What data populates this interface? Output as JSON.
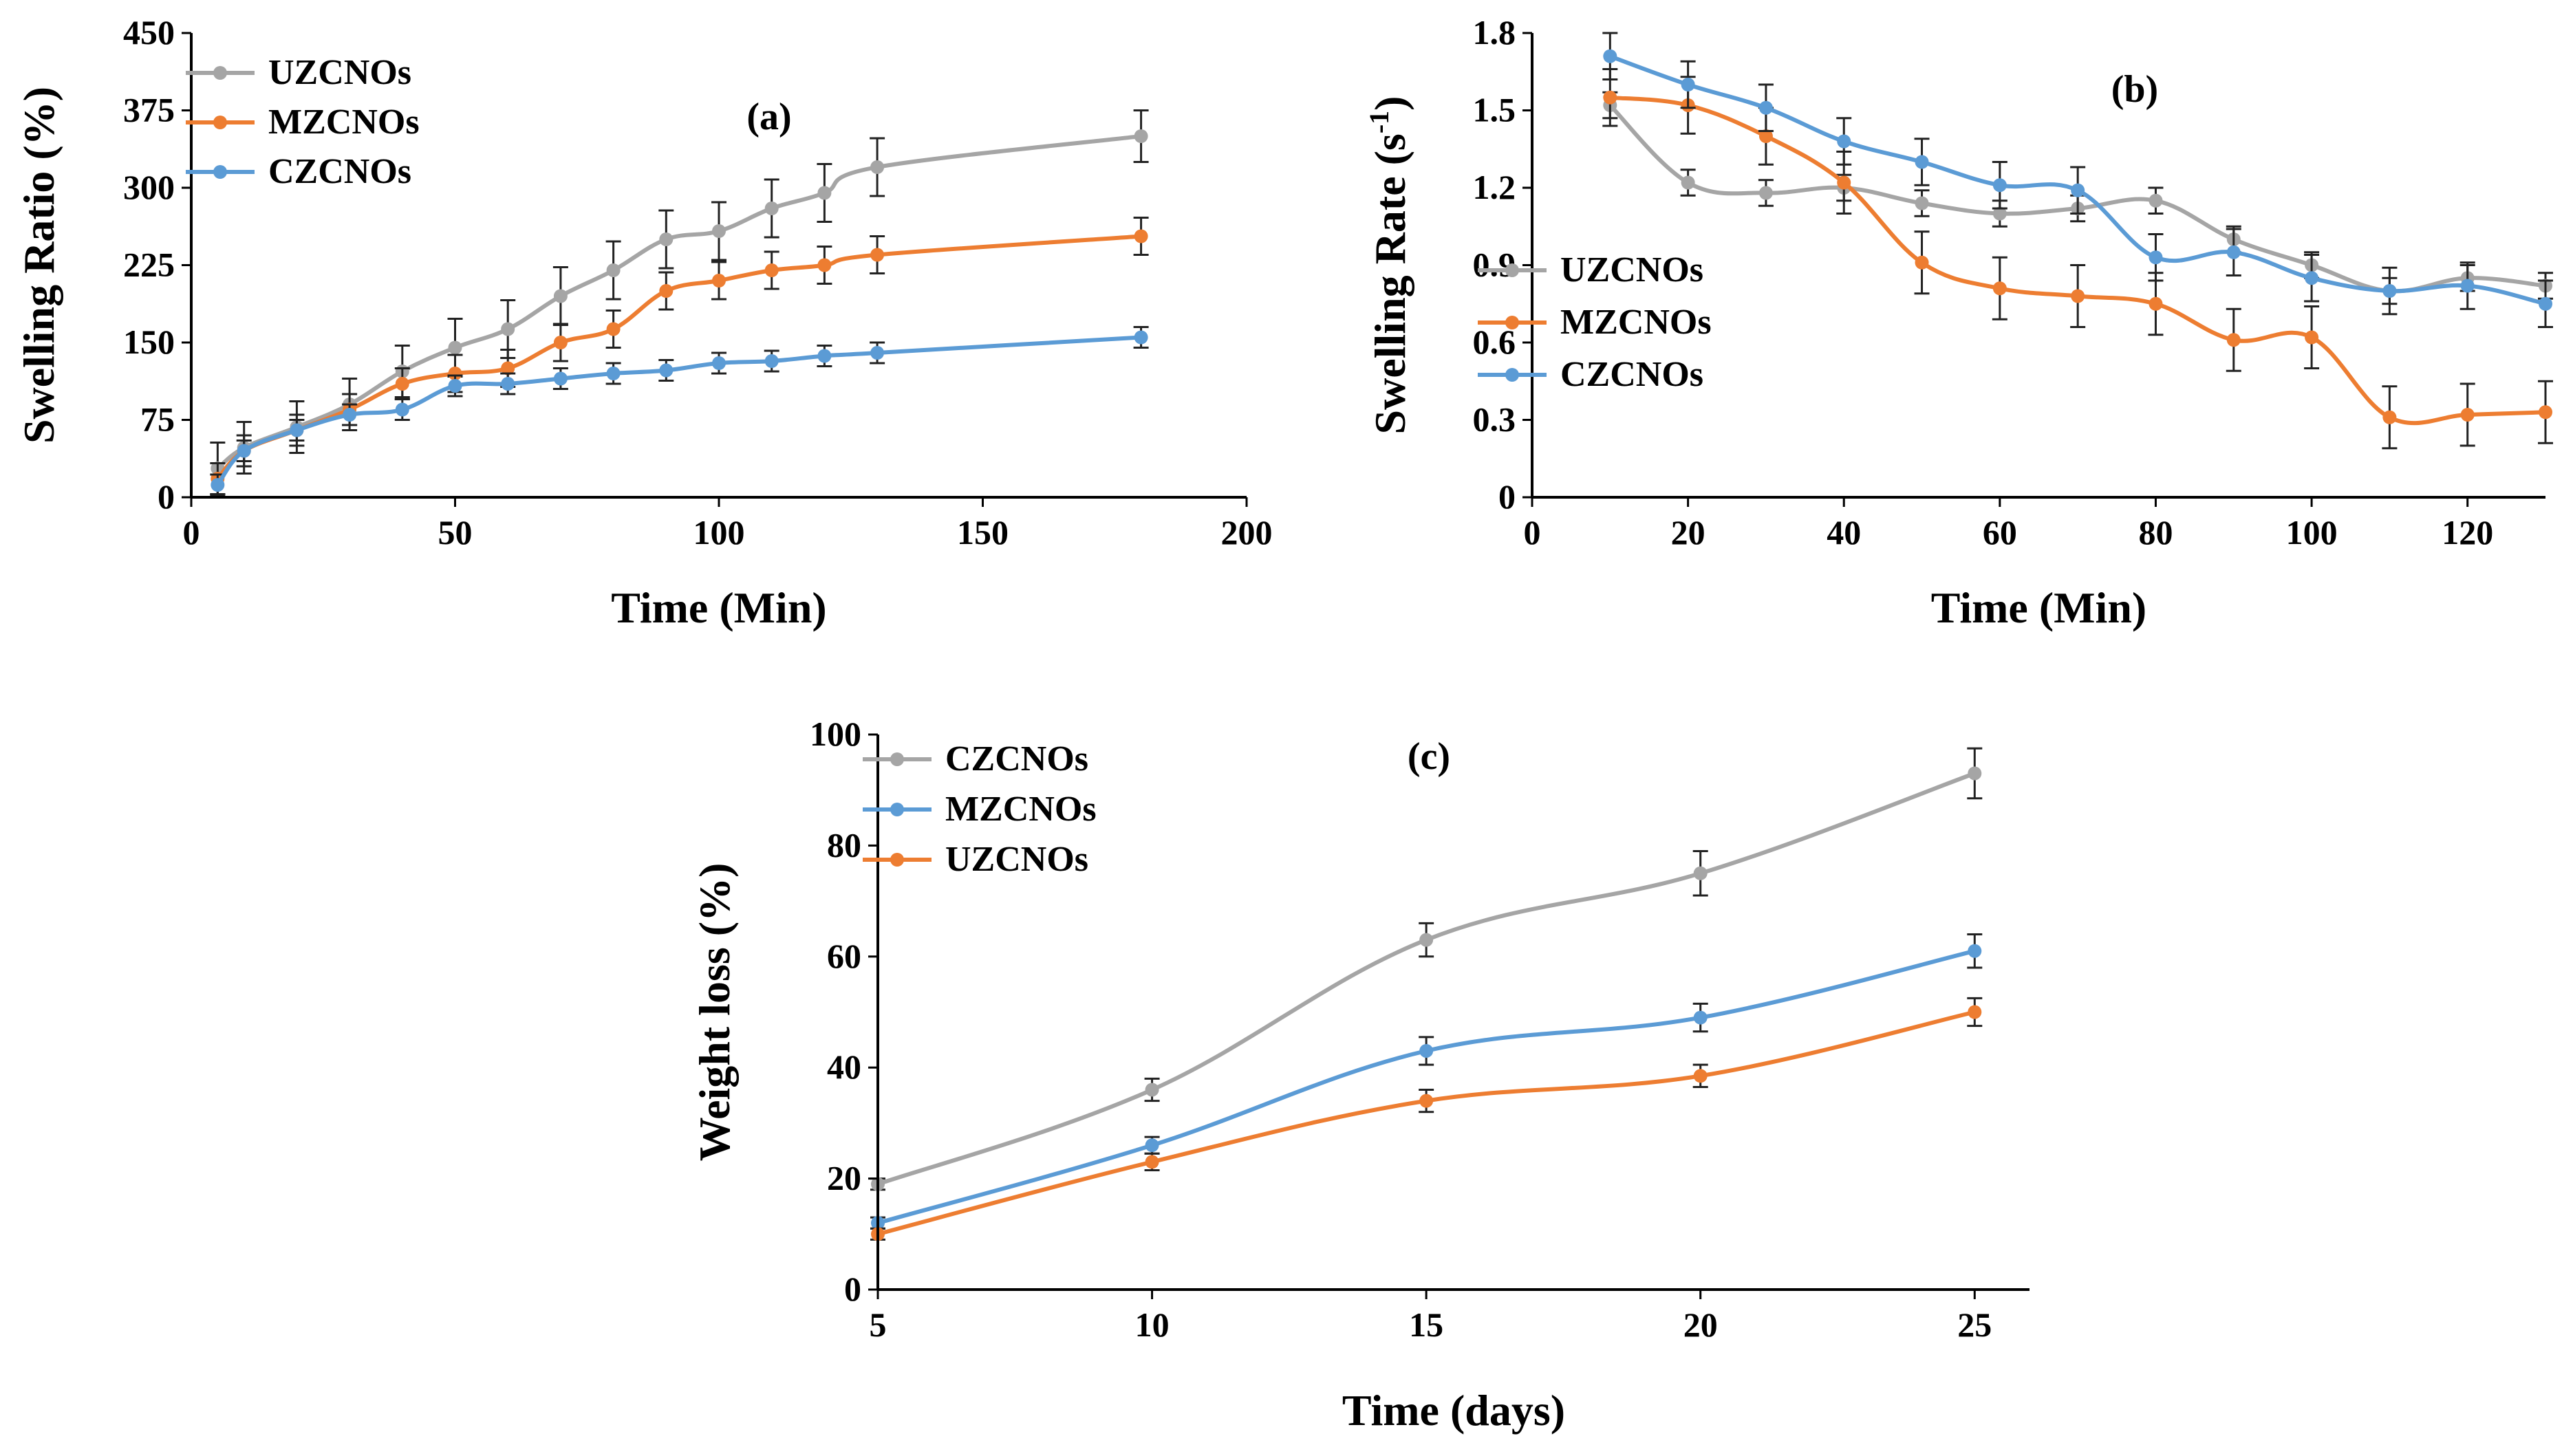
{
  "chart_data": [
    {
      "id": "a",
      "type": "line",
      "panel_label": "(a)",
      "xlabel": "Time (Min)",
      "ylabel": "Swelling Ratio (%)",
      "ylabel_superscript": "",
      "ylabel_after": "",
      "xlim": [
        0,
        200
      ],
      "ylim": [
        0,
        450
      ],
      "x_ticks": [
        0,
        50,
        100,
        150,
        200
      ],
      "x_tick_labels": [
        "0",
        "50",
        "100",
        "150",
        "200"
      ],
      "y_ticks": [
        0,
        75,
        150,
        225,
        300,
        375,
        450
      ],
      "y_tick_labels": [
        "0",
        "75",
        "150",
        "225",
        "300",
        "375",
        "450"
      ],
      "grid": false,
      "legend_position": "top-left",
      "series": [
        {
          "name": "UZCNOs",
          "color": "#a5a5a5",
          "x": [
            5,
            10,
            20,
            30,
            40,
            50,
            60,
            70,
            80,
            90,
            100,
            110,
            120,
            130,
            180
          ],
          "y": [
            28,
            48,
            68,
            90,
            122,
            145,
            163,
            195,
            220,
            250,
            258,
            280,
            295,
            320,
            350
          ],
          "err": [
            25,
            25,
            25,
            25,
            25,
            28,
            28,
            28,
            28,
            28,
            28,
            28,
            28,
            28,
            25
          ]
        },
        {
          "name": "MZCNOs",
          "color": "#ed7d31",
          "x": [
            5,
            10,
            20,
            30,
            40,
            50,
            60,
            70,
            80,
            90,
            100,
            110,
            120,
            130,
            180
          ],
          "y": [
            18,
            45,
            65,
            85,
            110,
            120,
            125,
            150,
            163,
            200,
            210,
            220,
            225,
            235,
            253
          ],
          "err": [
            15,
            15,
            15,
            15,
            15,
            18,
            18,
            18,
            18,
            18,
            18,
            18,
            18,
            18,
            18
          ]
        },
        {
          "name": "CZCNOs",
          "color": "#5b9bd5",
          "x": [
            5,
            10,
            20,
            30,
            40,
            50,
            60,
            70,
            80,
            90,
            100,
            110,
            120,
            130,
            180
          ],
          "y": [
            12,
            45,
            65,
            80,
            85,
            108,
            110,
            115,
            120,
            123,
            130,
            132,
            137,
            140,
            155
          ],
          "err": [
            10,
            10,
            10,
            10,
            10,
            10,
            10,
            10,
            10,
            10,
            10,
            10,
            10,
            10,
            10
          ]
        }
      ]
    },
    {
      "id": "b",
      "type": "line",
      "panel_label": "(b)",
      "xlabel": "Time (Min)",
      "ylabel": "Swelling Rate (s",
      "ylabel_superscript": "-1",
      "ylabel_after": ")",
      "xlim": [
        0,
        130
      ],
      "ylim": [
        0,
        1.8
      ],
      "x_ticks": [
        0,
        20,
        40,
        60,
        80,
        100,
        120
      ],
      "x_tick_labels": [
        "0",
        "20",
        "40",
        "60",
        "80",
        "100",
        "120"
      ],
      "y_ticks": [
        0,
        0.3,
        0.6,
        0.9,
        1.2,
        1.5,
        1.8
      ],
      "y_tick_labels": [
        "0",
        "0.3",
        "0.6",
        "0.9",
        "1.2",
        "1.5",
        "1.8"
      ],
      "grid": false,
      "legend_position": "center-left",
      "series": [
        {
          "name": "UZCNOs",
          "color": "#a5a5a5",
          "x": [
            10,
            20,
            30,
            40,
            50,
            60,
            70,
            80,
            90,
            100,
            110,
            120,
            130
          ],
          "y": [
            1.52,
            1.22,
            1.18,
            1.2,
            1.14,
            1.1,
            1.12,
            1.15,
            1.0,
            0.9,
            0.8,
            0.85,
            0.82
          ],
          "err": [
            0.05,
            0.05,
            0.05,
            0.05,
            0.05,
            0.05,
            0.05,
            0.05,
            0.05,
            0.05,
            0.05,
            0.05,
            0.05
          ]
        },
        {
          "name": "MZCNOs",
          "color": "#ed7d31",
          "x": [
            10,
            20,
            30,
            40,
            50,
            60,
            70,
            80,
            90,
            100,
            110,
            120,
            130
          ],
          "y": [
            1.55,
            1.52,
            1.4,
            1.22,
            0.91,
            0.81,
            0.78,
            0.75,
            0.61,
            0.62,
            0.31,
            0.32,
            0.33
          ],
          "err": [
            0.11,
            0.11,
            0.11,
            0.12,
            0.12,
            0.12,
            0.12,
            0.12,
            0.12,
            0.12,
            0.12,
            0.12,
            0.12
          ]
        },
        {
          "name": "CZCNOs",
          "color": "#5b9bd5",
          "x": [
            10,
            20,
            30,
            40,
            50,
            60,
            70,
            80,
            90,
            100,
            110,
            120,
            130
          ],
          "y": [
            1.71,
            1.6,
            1.51,
            1.38,
            1.3,
            1.21,
            1.19,
            0.93,
            0.95,
            0.85,
            0.8,
            0.82,
            0.75
          ],
          "err": [
            0.09,
            0.09,
            0.09,
            0.09,
            0.09,
            0.09,
            0.09,
            0.09,
            0.09,
            0.09,
            0.09,
            0.09,
            0.09
          ]
        }
      ]
    },
    {
      "id": "c",
      "type": "line",
      "panel_label": "(c)",
      "xlabel": "Time (days)",
      "ylabel": "Weight loss (%)",
      "ylabel_superscript": "",
      "ylabel_after": "",
      "xlim": [
        5,
        26
      ],
      "ylim": [
        0,
        100
      ],
      "x_ticks": [
        5,
        10,
        15,
        20,
        25
      ],
      "x_tick_labels": [
        "5",
        "10",
        "15",
        "20",
        "25"
      ],
      "y_ticks": [
        0,
        20,
        40,
        60,
        80,
        100
      ],
      "y_tick_labels": [
        "0",
        "20",
        "40",
        "60",
        "80",
        "100"
      ],
      "grid": false,
      "legend_position": "top-left",
      "series": [
        {
          "name": "CZCNOs",
          "color": "#a5a5a5",
          "x": [
            5,
            10,
            15,
            20,
            25
          ],
          "y": [
            19,
            36,
            63,
            75,
            93
          ],
          "err": [
            1,
            2,
            3,
            4,
            4.5
          ]
        },
        {
          "name": "MZCNOs",
          "color": "#5b9bd5",
          "x": [
            5,
            10,
            15,
            20,
            25
          ],
          "y": [
            12,
            26,
            43,
            49,
            61
          ],
          "err": [
            1,
            1.5,
            2.5,
            2.5,
            3
          ]
        },
        {
          "name": "UZCNOs",
          "color": "#ed7d31",
          "x": [
            5,
            10,
            15,
            20,
            25
          ],
          "y": [
            10,
            23,
            34,
            38.5,
            50
          ],
          "err": [
            1,
            1.5,
            2,
            2,
            2.5
          ]
        }
      ]
    }
  ]
}
